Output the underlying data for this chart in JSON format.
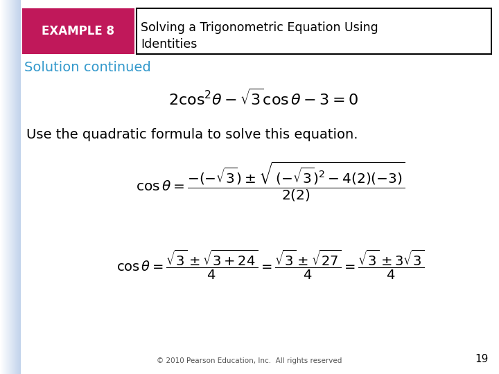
{
  "bg_color": "#ffffff",
  "example_box_color": "#c0185a",
  "example_text": "EXAMPLE 8",
  "title_line1": "Solving a Trigonometric Equation Using",
  "title_line2": "Identities",
  "solution_text": "Solution continued",
  "solution_color": "#3399cc",
  "sentence": "Use the quadratic formula to solve this equation.",
  "footer": "© 2010 Pearson Education, Inc.  All rights reserved",
  "page_number": "19"
}
